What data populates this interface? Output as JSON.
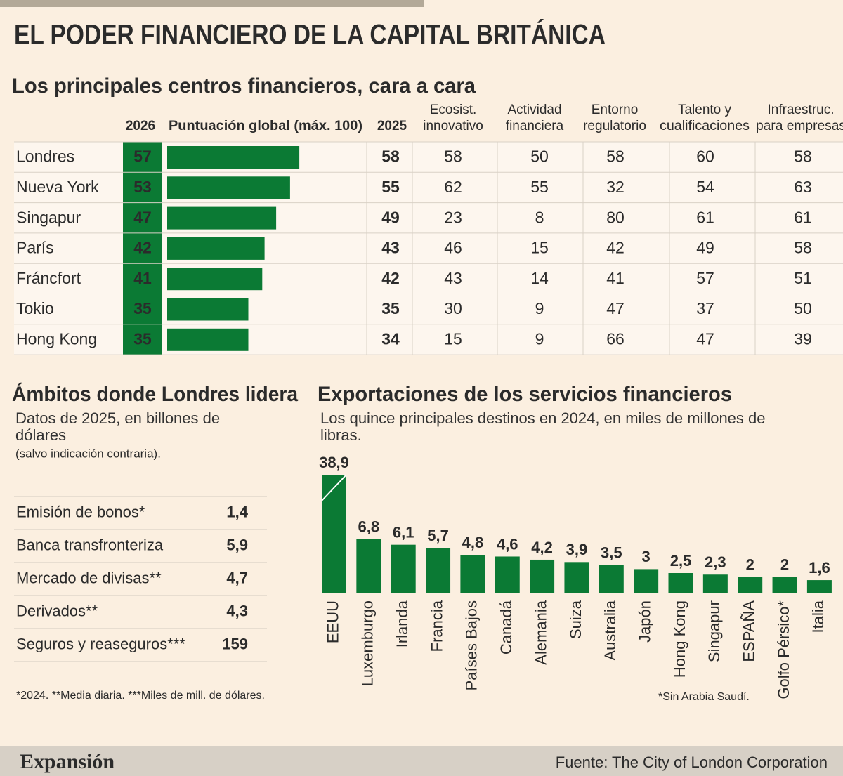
{
  "title": "EL PODER FINANCIERO DE LA CAPITAL BRITÁNICA",
  "chart_data": [
    {
      "type": "table",
      "title": "Los principales centros financieros, cara a cara",
      "columns": [
        [
          "2026"
        ],
        [
          "Puntuación global (máx. 100)"
        ],
        [
          "2025"
        ],
        [
          "Ecosist.",
          "innovativo"
        ],
        [
          "Actividad",
          "financiera"
        ],
        [
          "Entorno",
          "regulatorio"
        ],
        [
          "Talento y",
          "cualificaciones"
        ],
        [
          "Infraestruc.",
          "para empresas"
        ]
      ],
      "rows": [
        {
          "name": "Londres",
          "values": [
            57,
            58,
            58,
            50,
            58,
            60,
            58
          ]
        },
        {
          "name": "Nueva York",
          "values": [
            53,
            55,
            62,
            55,
            32,
            54,
            63
          ]
        },
        {
          "name": "Singapur",
          "values": [
            47,
            49,
            23,
            8,
            80,
            61,
            61
          ]
        },
        {
          "name": "París",
          "values": [
            42,
            43,
            46,
            15,
            42,
            49,
            58
          ]
        },
        {
          "name": "Fráncfort",
          "values": [
            41,
            42,
            43,
            14,
            41,
            57,
            51
          ]
        },
        {
          "name": "Tokio",
          "values": [
            35,
            35,
            30,
            9,
            47,
            37,
            50
          ]
        },
        {
          "name": "Hong Kong",
          "values": [
            35,
            34,
            15,
            9,
            66,
            47,
            39
          ]
        }
      ],
      "xlim": [
        0,
        100
      ],
      "color": "#0b7a34"
    },
    {
      "type": "list",
      "title": "Ámbitos donde Londres lidera",
      "subtitle": "Datos de 2025, en billones de dólares",
      "note": "(salvo indicación contraria).",
      "categories": [
        "Emisión de bonos*",
        "Banca transfronteriza",
        "Mercado de divisas**",
        "Derivados**",
        "Seguros y reaseguros***"
      ],
      "values": [
        1.4,
        5.9,
        4.7,
        4.3,
        159
      ],
      "value_labels": [
        "1,4",
        "5,9",
        "4,7",
        "4,3",
        "159"
      ],
      "footnote": "*2024. **Media diaria. ***Miles de mill. de dólares."
    },
    {
      "type": "bar",
      "title": "Exportaciones de los servicios financieros",
      "subtitle": "Los quince principales destinos en 2024, en miles de millones de libras.",
      "categories": [
        "EEUU",
        "Luxemburgo",
        "Irlanda",
        "Francia",
        "Países Bajos",
        "Canadá",
        "Alemania",
        "Suiza",
        "Australia",
        "Japón",
        "Hong Kong",
        "Singapur",
        "ESPAÑA",
        "Golfo Pérsico*",
        "Italia"
      ],
      "values": [
        38.9,
        6.8,
        6.1,
        5.7,
        4.8,
        4.6,
        4.2,
        3.9,
        3.5,
        3,
        2.5,
        2.3,
        2,
        2,
        1.6
      ],
      "value_labels": [
        "38,9",
        "6,8",
        "6,1",
        "5,7",
        "4,8",
        "4,6",
        "4,2",
        "3,9",
        "3,5",
        "3",
        "2,5",
        "2,3",
        "2",
        "2",
        "1,6"
      ],
      "ylim": [
        0,
        15
      ],
      "color": "#0b7a34",
      "footnote": "*Sin Arabia Saudí."
    }
  ],
  "footer": {
    "brand": "Expansión",
    "source": "Fuente: The City of London Corporation"
  }
}
